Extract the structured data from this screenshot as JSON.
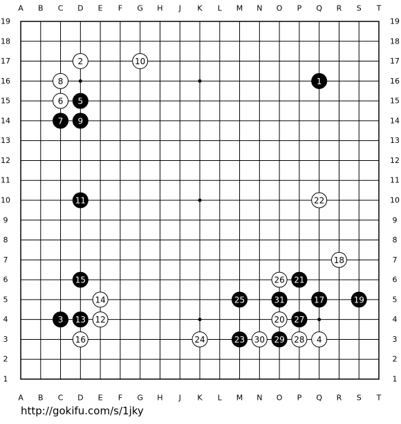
{
  "columns": [
    "A",
    "B",
    "C",
    "D",
    "E",
    "F",
    "G",
    "H",
    "J",
    "K",
    "L",
    "M",
    "N",
    "O",
    "P",
    "Q",
    "R",
    "S",
    "T"
  ],
  "rows": [
    19,
    18,
    17,
    16,
    15,
    14,
    13,
    12,
    11,
    10,
    9,
    8,
    7,
    6,
    5,
    4,
    3,
    2,
    1
  ],
  "stones": [
    {
      "move": 1,
      "color": "black",
      "col": "Q",
      "row": 16
    },
    {
      "move": 2,
      "color": "white",
      "col": "D",
      "row": 17
    },
    {
      "move": 3,
      "color": "black",
      "col": "C",
      "row": 4
    },
    {
      "move": 4,
      "color": "white",
      "col": "Q",
      "row": 3
    },
    {
      "move": 5,
      "color": "black",
      "col": "D",
      "row": 15
    },
    {
      "move": 6,
      "color": "white",
      "col": "C",
      "row": 15
    },
    {
      "move": 7,
      "color": "black",
      "col": "C",
      "row": 14
    },
    {
      "move": 8,
      "color": "white",
      "col": "C",
      "row": 16
    },
    {
      "move": 9,
      "color": "black",
      "col": "D",
      "row": 14
    },
    {
      "move": 10,
      "color": "white",
      "col": "G",
      "row": 17
    },
    {
      "move": 11,
      "color": "black",
      "col": "D",
      "row": 10
    },
    {
      "move": 12,
      "color": "white",
      "col": "E",
      "row": 4
    },
    {
      "move": 13,
      "color": "black",
      "col": "D",
      "row": 4
    },
    {
      "move": 14,
      "color": "white",
      "col": "E",
      "row": 5
    },
    {
      "move": 15,
      "color": "black",
      "col": "D",
      "row": 6
    },
    {
      "move": 16,
      "color": "white",
      "col": "D",
      "row": 3
    },
    {
      "move": 17,
      "color": "black",
      "col": "Q",
      "row": 5
    },
    {
      "move": 18,
      "color": "white",
      "col": "R",
      "row": 7
    },
    {
      "move": 19,
      "color": "black",
      "col": "S",
      "row": 5
    },
    {
      "move": 20,
      "color": "white",
      "col": "O",
      "row": 4
    },
    {
      "move": 21,
      "color": "black",
      "col": "P",
      "row": 6
    },
    {
      "move": 22,
      "color": "white",
      "col": "Q",
      "row": 10
    },
    {
      "move": 23,
      "color": "black",
      "col": "M",
      "row": 3
    },
    {
      "move": 24,
      "color": "white",
      "col": "K",
      "row": 3
    },
    {
      "move": 25,
      "color": "black",
      "col": "M",
      "row": 5
    },
    {
      "move": 26,
      "color": "white",
      "col": "O",
      "row": 6
    },
    {
      "move": 27,
      "color": "black",
      "col": "P",
      "row": 4
    },
    {
      "move": 28,
      "color": "white",
      "col": "P",
      "row": 3
    },
    {
      "move": 29,
      "color": "black",
      "col": "O",
      "row": 3
    },
    {
      "move": 30,
      "color": "white",
      "col": "N",
      "row": 3
    },
    {
      "move": 31,
      "color": "black",
      "col": "O",
      "row": 5
    }
  ],
  "url": "http://gokifu.com/s/1jky"
}
